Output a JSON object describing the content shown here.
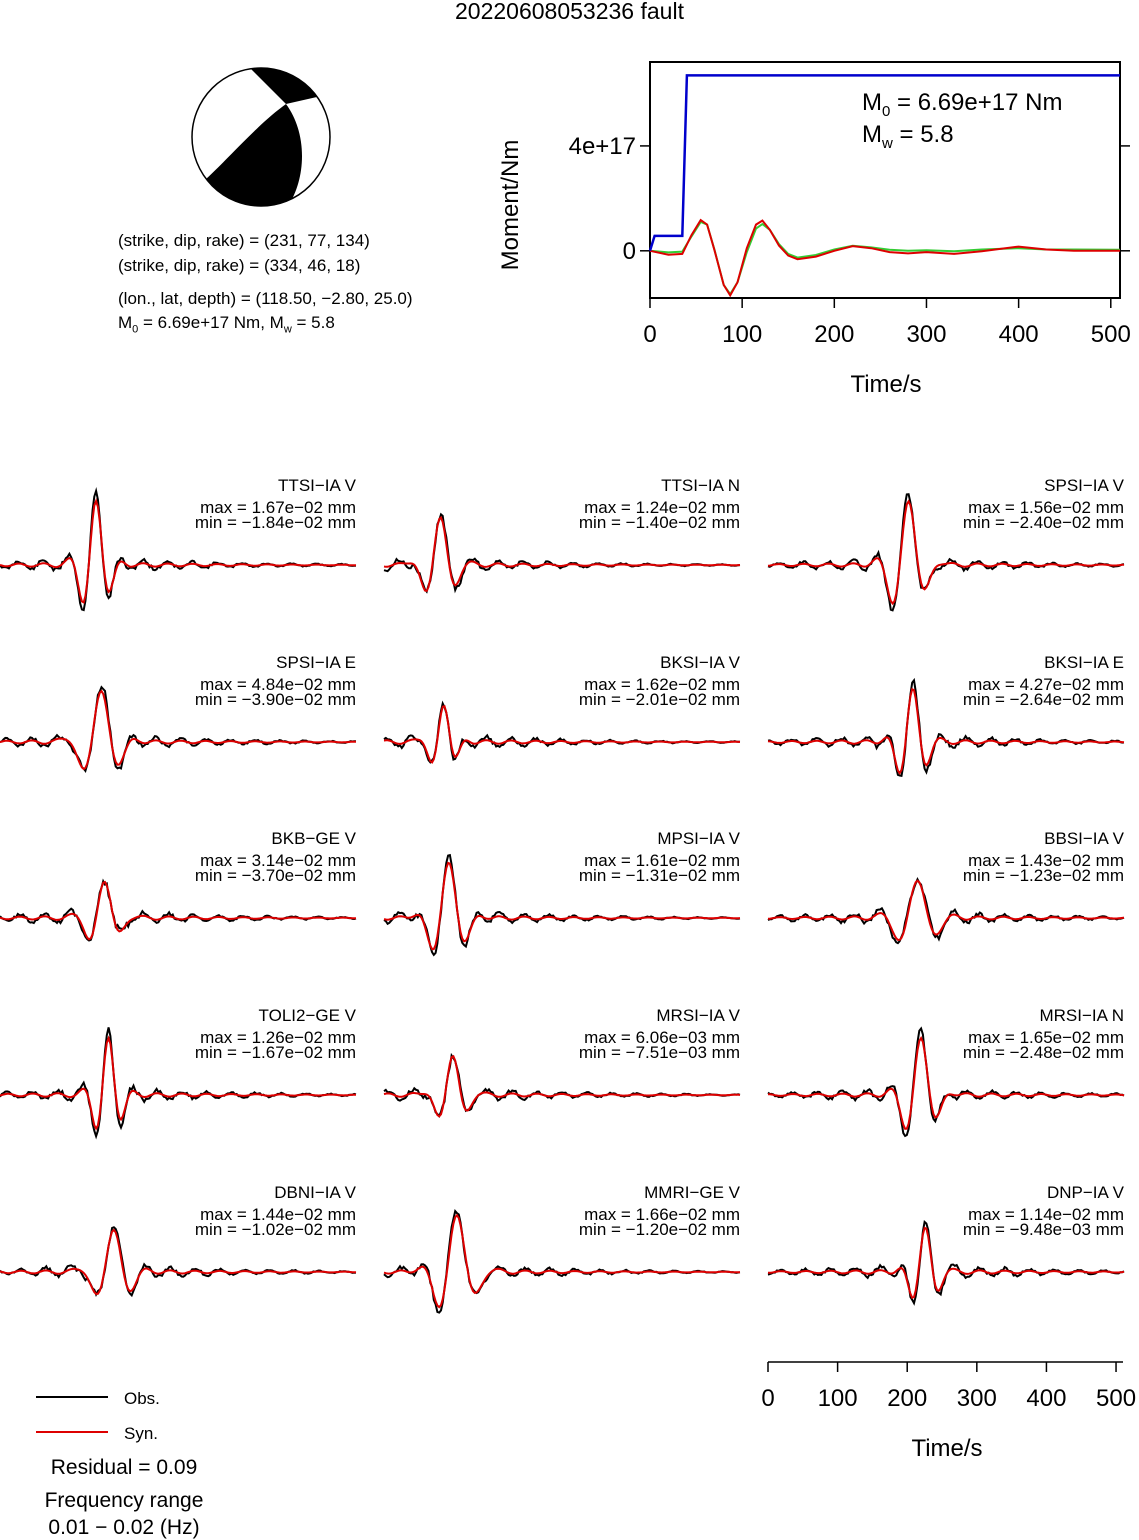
{
  "title": "20220608053236 fault",
  "mechanism": {
    "line1": "(strike, dip, rake) = (231, 77, 134)",
    "line2": "(strike, dip, rake) = (334, 46, 18)",
    "line3": "(lon., lat, depth) = (118.50, −2.80, 25.0)",
    "line4_m": "M",
    "line4_sub": "0",
    "line4_rest": " = 6.69e+17 Nm, M",
    "line4_sub2": "w",
    "line4_end": " = 5.8"
  },
  "moment_plot": {
    "ylabel": "Moment/Nm",
    "xlabel": "Time/s",
    "m0_text_a": "M",
    "m0_sub": "0",
    "m0_text_b": " = 6.69e+17 Nm",
    "mw_text_a": "M",
    "mw_sub": "w",
    "mw_text_b": " = 5.8",
    "xticks": [
      0,
      100,
      200,
      300,
      400,
      500
    ],
    "xtick_labels": [
      "0",
      "100",
      "200",
      "300",
      "400",
      "500"
    ],
    "yticks": [
      0,
      4e+17
    ],
    "ytick_labels": [
      "0",
      "4e+17"
    ],
    "xlim": [
      0,
      510
    ],
    "ylim": [
      -1.8e+17,
      7.2e+17
    ],
    "cumulative_moment": {
      "color": "#0000cc",
      "t": [
        0,
        5,
        35,
        40,
        510
      ],
      "m": [
        0,
        5.7e+16,
        5.7e+16,
        6.69e+17,
        6.69e+17
      ]
    },
    "moment_rate_red": {
      "color": "#dd0000",
      "t": [
        0,
        20,
        35,
        45,
        55,
        62,
        70,
        80,
        87,
        95,
        105,
        115,
        122,
        130,
        140,
        150,
        160,
        180,
        200,
        220,
        240,
        260,
        280,
        300,
        330,
        360,
        400,
        430,
        460,
        510
      ],
      "m": [
        0,
        -1.5e+16,
        -1.2e+16,
        6e+16,
        1.17e+17,
        1e+17,
        2000000000000000.0,
        -1.3e+17,
        -1.7e+17,
        -1.2e+17,
        1e+16,
        1e+17,
        1.15e+17,
        8e+16,
        2e+16,
        -1.8e+16,
        -3.2e+16,
        -2.2e+16,
        0,
        1.8e+16,
        1e+16,
        -5000000000000000.0,
        -1e+16,
        -5000000000000000.0,
        -1.2e+16,
        -2000000000000000.0,
        1.6e+16,
        5000000000000000.0,
        0,
        0
      ]
    },
    "moment_rate_green": {
      "color": "#33cc33",
      "t": [
        0,
        20,
        35,
        45,
        55,
        62,
        70,
        80,
        87,
        95,
        105,
        115,
        122,
        130,
        140,
        150,
        160,
        180,
        200,
        220,
        240,
        260,
        280,
        300,
        330,
        360,
        400,
        430,
        460,
        510
      ],
      "m": [
        0,
        -6000000000000000.0,
        -3000000000000000.0,
        5.5e+16,
        1.1e+17,
        1e+17,
        4000000000000000.0,
        -1.3e+17,
        -1.65e+17,
        -1.2e+17,
        -5000000000000000.0,
        8.5e+16,
        1.02e+17,
        8e+16,
        2.5e+16,
        -1.2e+16,
        -2.6e+16,
        -1.6e+16,
        5000000000000000.0,
        1.9e+16,
        1.3e+16,
        4000000000000000.0,
        0,
        2000000000000000.0,
        -2000000000000000.0,
        5000000000000000.0,
        1e+16,
        5000000000000000.0,
        5000000000000000.0,
        4000000000000000.0
      ]
    }
  },
  "traces": [
    {
      "label": "TTSI−IA V",
      "max": "max = 1.67e−02 mm",
      "min": "min = −1.84e−02 mm"
    },
    {
      "label": "TTSI−IA N",
      "max": "max = 1.24e−02 mm",
      "min": "min = −1.40e−02 mm"
    },
    {
      "label": "SPSI−IA V",
      "max": "max = 1.56e−02 mm",
      "min": "min = −2.40e−02 mm"
    },
    {
      "label": "SPSI−IA E",
      "max": "max = 4.84e−02 mm",
      "min": "min = −3.90e−02 mm"
    },
    {
      "label": "BKSI−IA V",
      "max": "max = 1.62e−02 mm",
      "min": "min = −2.01e−02 mm"
    },
    {
      "label": "BKSI−IA E",
      "max": "max = 4.27e−02 mm",
      "min": "min = −2.64e−02 mm"
    },
    {
      "label": "BKB−GE V",
      "max": "max = 3.14e−02 mm",
      "min": "min = −3.70e−02 mm"
    },
    {
      "label": "MPSI−IA V",
      "max": "max = 1.61e−02 mm",
      "min": "min = −1.31e−02 mm"
    },
    {
      "label": "BBSI−IA V",
      "max": "max = 1.43e−02 mm",
      "min": "min = −1.23e−02 mm"
    },
    {
      "label": "TOLI2−GE V",
      "max": "max = 1.26e−02 mm",
      "min": "min = −1.67e−02 mm"
    },
    {
      "label": "MRSI−IA V",
      "max": "max = 6.06e−03 mm",
      "min": "min = −7.51e−03 mm"
    },
    {
      "label": "MRSI−IA N",
      "max": "max = 1.65e−02 mm",
      "min": "min = −2.48e−02 mm"
    },
    {
      "label": "DBNI−IA V",
      "max": "max = 1.44e−02 mm",
      "min": "min = −1.02e−02 mm"
    },
    {
      "label": "MMRI−GE V",
      "max": "max = 1.66e−02 mm",
      "min": "min = −1.20e−02 mm"
    },
    {
      "label": "DNP−IA V",
      "max": "max = 1.14e−02 mm",
      "min": "min = −9.48e−03 mm"
    }
  ],
  "waveform_axis": {
    "xlabel": "Time/s",
    "xticks": [
      0,
      100,
      200,
      300,
      400,
      500
    ],
    "xtick_labels": [
      "0",
      "100",
      "200",
      "300",
      "400",
      "500"
    ],
    "xlim": [
      0,
      510
    ]
  },
  "legend": {
    "obs": "Obs.",
    "syn": "Syn.",
    "obs_color": "#000000",
    "syn_color": "#dd0000"
  },
  "residual": "Residual = 0.09",
  "freq_label": "Frequency range",
  "freq_range": "0.01 − 0.02 (Hz)"
}
